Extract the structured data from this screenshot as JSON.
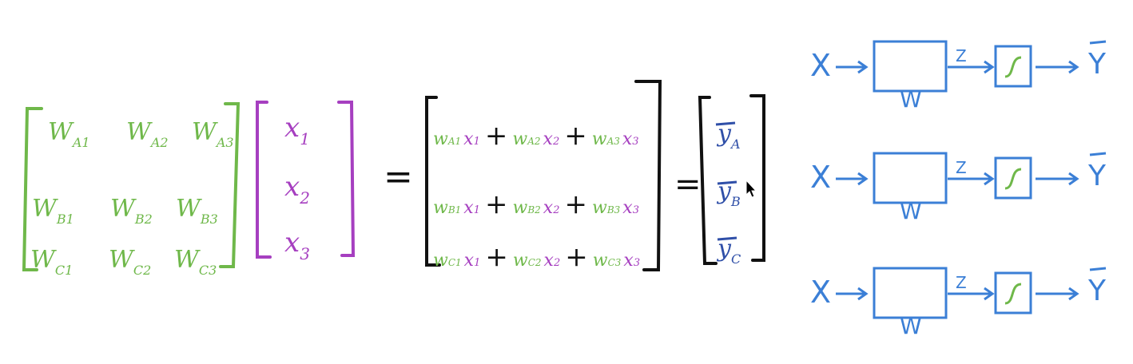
{
  "colors": {
    "green": "#6fb84a",
    "purple": "#a63fc0",
    "black": "#111111",
    "blue": "#3b7fd6",
    "darkblue": "#2f4fa8"
  },
  "weights": {
    "rows": [
      [
        {
          "base": "W",
          "sub": "A1"
        },
        {
          "base": "W",
          "sub": "A2"
        },
        {
          "base": "W",
          "sub": "A3"
        }
      ],
      [
        {
          "base": "W",
          "sub": "B1"
        },
        {
          "base": "W",
          "sub": "B2"
        },
        {
          "base": "W",
          "sub": "B3"
        }
      ],
      [
        {
          "base": "W",
          "sub": "C1"
        },
        {
          "base": "W",
          "sub": "C2"
        },
        {
          "base": "W",
          "sub": "C3"
        }
      ]
    ]
  },
  "inputs": [
    {
      "base": "x",
      "sub": "1"
    },
    {
      "base": "x",
      "sub": "2"
    },
    {
      "base": "x",
      "sub": "3"
    }
  ],
  "equals": "=",
  "plus": "+",
  "products": {
    "rows": [
      [
        {
          "w": "A1",
          "x": "1"
        },
        {
          "w": "A2",
          "x": "2"
        },
        {
          "w": "A3",
          "x": "3"
        }
      ],
      [
        {
          "w": "B1",
          "x": "1"
        },
        {
          "w": "B2",
          "x": "2"
        },
        {
          "w": "B3",
          "x": "3"
        }
      ],
      [
        {
          "w": "C1",
          "x": "1"
        },
        {
          "w": "C2",
          "x": "2"
        },
        {
          "w": "C3",
          "x": "3"
        }
      ]
    ]
  },
  "outputs": [
    {
      "base": "y",
      "sub": "A"
    },
    {
      "base": "y",
      "sub": "B"
    },
    {
      "base": "y",
      "sub": "C"
    }
  ],
  "network": {
    "input_label": "X",
    "box_label": "W",
    "mid_label": "Z",
    "output_label": "Y",
    "rows": 3
  }
}
